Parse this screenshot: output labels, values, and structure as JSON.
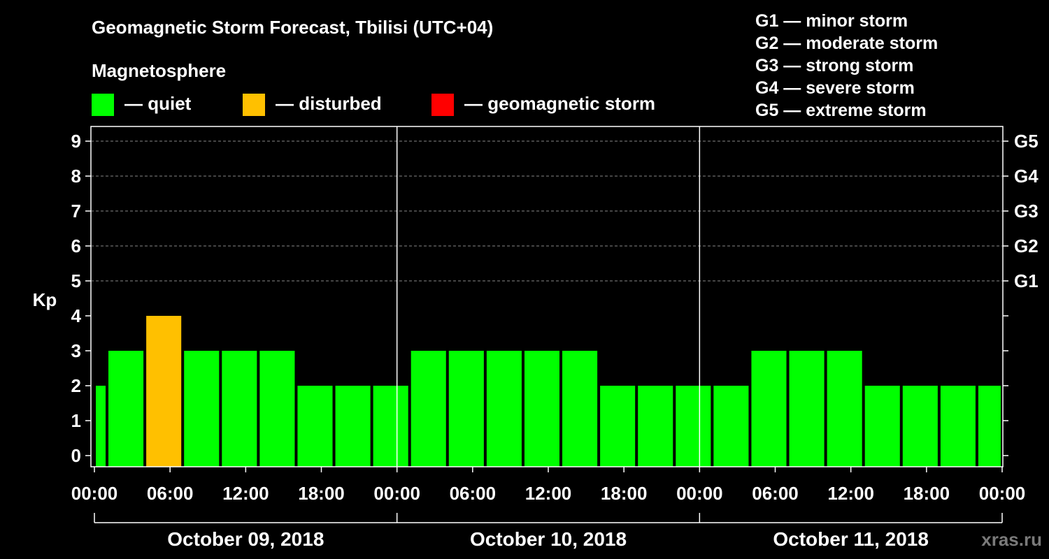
{
  "colors": {
    "quiet": "#00ff00",
    "disturbed": "#ffc000",
    "storm": "#ff0000",
    "background": "#000000",
    "foreground": "#ffffff",
    "watermark": "#7a7a7a"
  },
  "header": {
    "title": "Geomagnetic Storm Forecast, Tbilisi (UTC+04)",
    "magnetosphere_label": "Magnetosphere",
    "legend": [
      {
        "key": "quiet",
        "label": "— quiet"
      },
      {
        "key": "disturbed",
        "label": "— disturbed"
      },
      {
        "key": "storm",
        "label": "— geomagnetic storm"
      }
    ]
  },
  "g_scale_legend": [
    "G1 — minor storm",
    "G2 — moderate storm",
    "G3 — strong storm",
    "G4 — severe storm",
    "G5 — extreme storm"
  ],
  "watermark": "xras.ru",
  "chart_data": {
    "type": "bar",
    "ylabel": "Kp",
    "ylim": [
      0,
      9
    ],
    "y_ticks": [
      0,
      1,
      2,
      3,
      4,
      5,
      6,
      7,
      8,
      9
    ],
    "right_axis_labels": [
      {
        "kp": 5,
        "label": "G1"
      },
      {
        "kp": 6,
        "label": "G2"
      },
      {
        "kp": 7,
        "label": "G3"
      },
      {
        "kp": 8,
        "label": "G4"
      },
      {
        "kp": 9,
        "label": "G5"
      }
    ],
    "x_start_hour": 0,
    "x_end_hour": 72,
    "x_tick_labels": [
      {
        "hour": 0,
        "label": "00:00"
      },
      {
        "hour": 6,
        "label": "06:00"
      },
      {
        "hour": 12,
        "label": "12:00"
      },
      {
        "hour": 18,
        "label": "18:00"
      },
      {
        "hour": 24,
        "label": "00:00"
      },
      {
        "hour": 30,
        "label": "06:00"
      },
      {
        "hour": 36,
        "label": "12:00"
      },
      {
        "hour": 42,
        "label": "18:00"
      },
      {
        "hour": 48,
        "label": "00:00"
      },
      {
        "hour": 54,
        "label": "06:00"
      },
      {
        "hour": 60,
        "label": "12:00"
      },
      {
        "hour": 66,
        "label": "18:00"
      },
      {
        "hour": 72,
        "label": "00:00"
      }
    ],
    "day_boundaries_hours": [
      24,
      48
    ],
    "days": [
      {
        "label": "October 09, 2018",
        "start_hour": 0,
        "end_hour": 24
      },
      {
        "label": "October 10, 2018",
        "start_hour": 24,
        "end_hour": 48
      },
      {
        "label": "October 11, 2018",
        "start_hour": 48,
        "end_hour": 72
      }
    ],
    "bars": [
      {
        "start_hour": 0,
        "end_hour": 1,
        "kp": 2,
        "level": "quiet"
      },
      {
        "start_hour": 1,
        "end_hour": 4,
        "kp": 3,
        "level": "quiet"
      },
      {
        "start_hour": 4,
        "end_hour": 7,
        "kp": 4,
        "level": "disturbed"
      },
      {
        "start_hour": 7,
        "end_hour": 10,
        "kp": 3,
        "level": "quiet"
      },
      {
        "start_hour": 10,
        "end_hour": 13,
        "kp": 3,
        "level": "quiet"
      },
      {
        "start_hour": 13,
        "end_hour": 16,
        "kp": 3,
        "level": "quiet"
      },
      {
        "start_hour": 16,
        "end_hour": 19,
        "kp": 2,
        "level": "quiet"
      },
      {
        "start_hour": 19,
        "end_hour": 22,
        "kp": 2,
        "level": "quiet"
      },
      {
        "start_hour": 22,
        "end_hour": 25,
        "kp": 2,
        "level": "quiet"
      },
      {
        "start_hour": 25,
        "end_hour": 28,
        "kp": 3,
        "level": "quiet"
      },
      {
        "start_hour": 28,
        "end_hour": 31,
        "kp": 3,
        "level": "quiet"
      },
      {
        "start_hour": 31,
        "end_hour": 34,
        "kp": 3,
        "level": "quiet"
      },
      {
        "start_hour": 34,
        "end_hour": 37,
        "kp": 3,
        "level": "quiet"
      },
      {
        "start_hour": 37,
        "end_hour": 40,
        "kp": 3,
        "level": "quiet"
      },
      {
        "start_hour": 40,
        "end_hour": 43,
        "kp": 2,
        "level": "quiet"
      },
      {
        "start_hour": 43,
        "end_hour": 46,
        "kp": 2,
        "level": "quiet"
      },
      {
        "start_hour": 46,
        "end_hour": 49,
        "kp": 2,
        "level": "quiet"
      },
      {
        "start_hour": 49,
        "end_hour": 52,
        "kp": 2,
        "level": "quiet"
      },
      {
        "start_hour": 52,
        "end_hour": 55,
        "kp": 3,
        "level": "quiet"
      },
      {
        "start_hour": 55,
        "end_hour": 58,
        "kp": 3,
        "level": "quiet"
      },
      {
        "start_hour": 58,
        "end_hour": 61,
        "kp": 3,
        "level": "quiet"
      },
      {
        "start_hour": 61,
        "end_hour": 64,
        "kp": 2,
        "level": "quiet"
      },
      {
        "start_hour": 64,
        "end_hour": 67,
        "kp": 2,
        "level": "quiet"
      },
      {
        "start_hour": 67,
        "end_hour": 70,
        "kp": 2,
        "level": "quiet"
      },
      {
        "start_hour": 70,
        "end_hour": 72,
        "kp": 2,
        "level": "quiet"
      }
    ]
  }
}
